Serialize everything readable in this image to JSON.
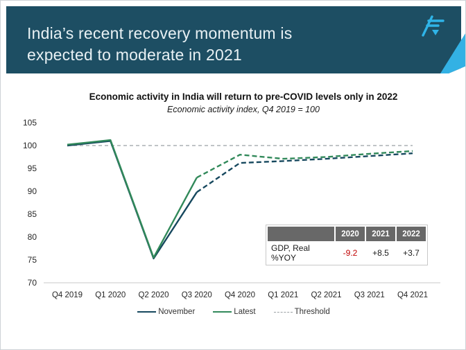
{
  "slide": {
    "title_line1": "India’s recent recovery momentum is",
    "title_line2": "expected to moderate in 2021"
  },
  "colors": {
    "header_bg": "#1d4e63",
    "accent_light_blue": "#33b1e4",
    "logo_blue": "#2fb4e8",
    "november_line": "#16485e",
    "latest_line": "#31895a",
    "threshold_line": "#9aa0a3",
    "negative_value": "#c00000",
    "table_header_bg": "#686868"
  },
  "chart_data": {
    "type": "line",
    "title": "Economic activity in India will return to pre-COVID levels only in 2022",
    "subtitle": "Economic activity index, Q4 2019 = 100",
    "x_categories": [
      "Q4 2019",
      "Q1 2020",
      "Q2 2020",
      "Q3 2020",
      "Q4 2020",
      "Q1 2021",
      "Q2 2021",
      "Q3 2021",
      "Q4 2021"
    ],
    "y_ticks": [
      105,
      100,
      95,
      90,
      85,
      80,
      75,
      70
    ],
    "ylim": [
      70,
      105
    ],
    "grid": false,
    "legend_position": "bottom",
    "series": [
      {
        "name": "November",
        "color": "#16485e",
        "style": "solid-then-dashed",
        "dashed_from_index": 3,
        "values": [
          100,
          101,
          75.3,
          89.8,
          96.2,
          96.6,
          97.1,
          97.7,
          98.3
        ]
      },
      {
        "name": "Latest",
        "color": "#31895a",
        "style": "solid-then-dashed",
        "dashed_from_index": 3,
        "values": [
          100.2,
          101.2,
          75.5,
          93,
          98,
          97.1,
          97.5,
          98.2,
          98.8
        ]
      },
      {
        "name": "Threshold",
        "color": "#9aa0a3",
        "style": "dashed",
        "values": [
          100,
          100,
          100,
          100,
          100,
          100,
          100,
          100,
          100
        ]
      }
    ]
  },
  "table": {
    "header": [
      "",
      "2020",
      "2021",
      "2022"
    ],
    "rows": [
      [
        "GDP, Real %YOY",
        "-9.2",
        "+8.5",
        "+3.7"
      ]
    ]
  }
}
